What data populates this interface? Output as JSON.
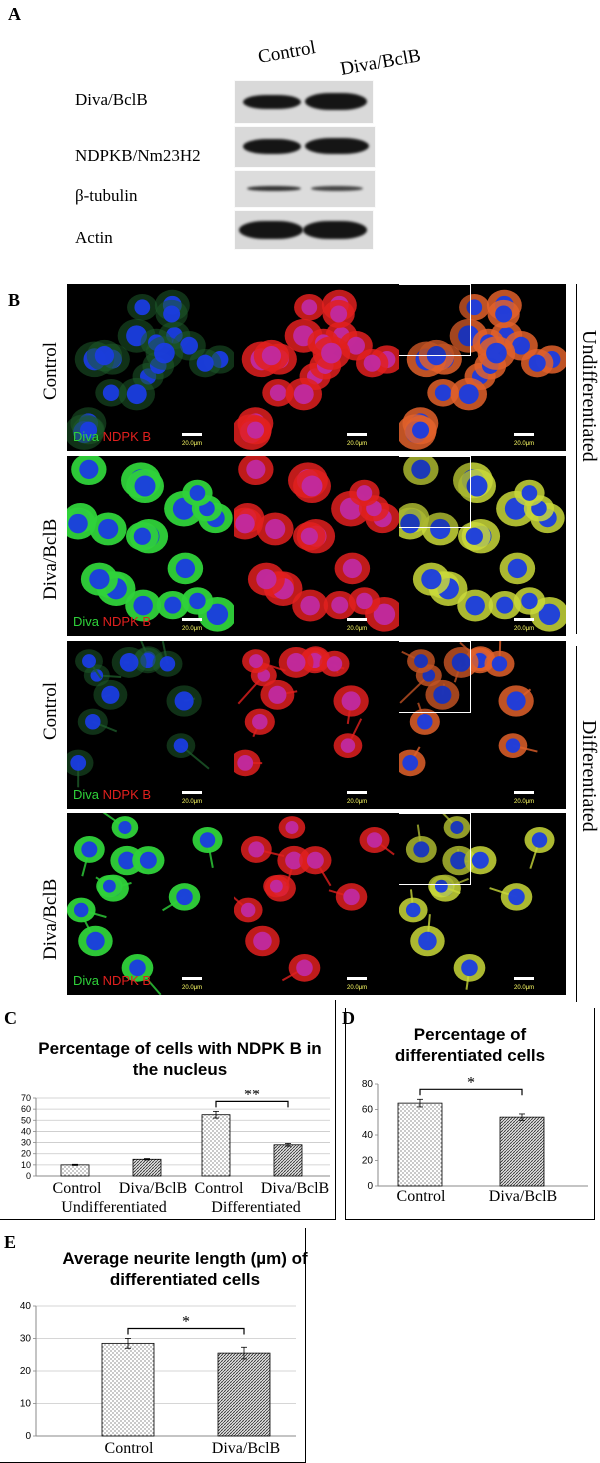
{
  "panels": {
    "A": "A",
    "B": "B",
    "C": "C",
    "D": "D",
    "E": "E"
  },
  "blot": {
    "columns": [
      "Control",
      "Diva/BclB"
    ],
    "rows": [
      "Diva/BclB",
      "NDPKB/Nm23H2",
      "β-tubulin",
      "Actin"
    ]
  },
  "microscopy": {
    "row_labels": [
      "Control",
      "Diva/BclB",
      "Control",
      "Diva/BclB"
    ],
    "stain_green": "Diva",
    "stain_red": "NDPK B",
    "scale_bar": "20.0μm",
    "group_labels": [
      "Undifferentiated",
      "Differentiated"
    ],
    "colors": {
      "diva": "#2fd23a",
      "ndpk": "#e0201e",
      "dapi": "#1a3ce0"
    }
  },
  "chart_data": [
    {
      "type": "bar",
      "title": "Percentage of cells with NDPK B in the nucleus",
      "categories": [
        "Control",
        "Diva/BclB",
        "Control",
        "Diva/BclB"
      ],
      "groups": [
        "Undifferentiated",
        "Differentiated"
      ],
      "values": [
        10,
        15,
        55,
        28
      ],
      "errors": [
        0.5,
        0.6,
        3,
        1.2
      ],
      "ylim": [
        0,
        70
      ],
      "yticks": [
        0,
        10,
        20,
        30,
        40,
        50,
        60,
        70
      ],
      "significance": "**",
      "grid": true
    },
    {
      "type": "bar",
      "title": "Percentage of differentiated cells",
      "categories": [
        "Control",
        "Diva/BclB"
      ],
      "values": [
        65,
        54
      ],
      "errors": [
        3,
        2.5
      ],
      "ylim": [
        0,
        80
      ],
      "yticks": [
        0,
        20,
        40,
        60,
        80
      ],
      "significance": "*",
      "grid": false
    },
    {
      "type": "bar",
      "title": "Average neurite length (µm) of differentiated cells",
      "categories": [
        "Control",
        "Diva/BclB"
      ],
      "values": [
        28.5,
        25.5
      ],
      "errors": [
        1.5,
        1.8
      ],
      "ylim": [
        0,
        40
      ],
      "yticks": [
        0,
        10,
        20,
        30,
        40
      ],
      "significance": "*",
      "grid": true
    }
  ]
}
